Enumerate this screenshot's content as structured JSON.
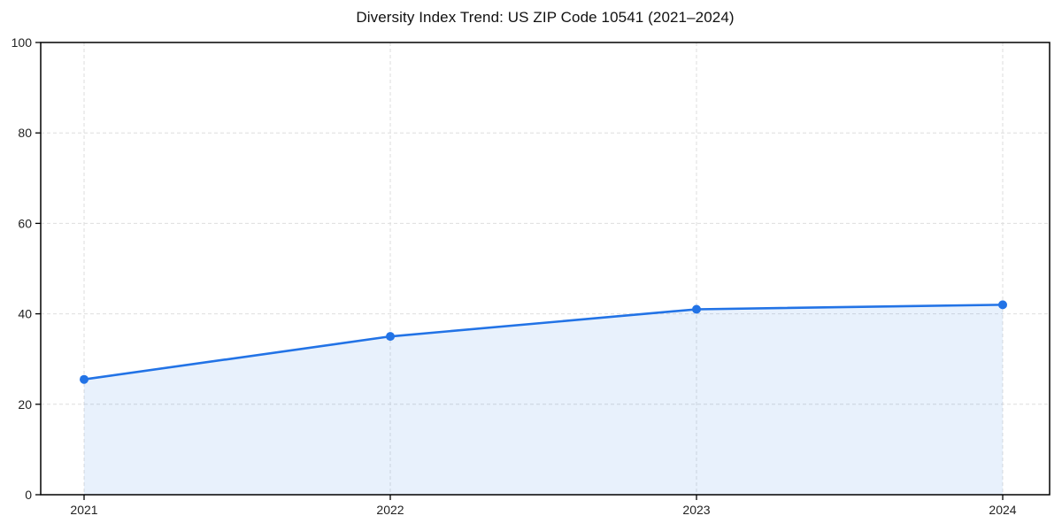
{
  "chart_data": {
    "type": "area",
    "title": "Diversity Index Trend: US ZIP Code 10541 (2021–2024)",
    "categories": [
      "2021",
      "2022",
      "2023",
      "2024"
    ],
    "values": [
      25.5,
      35,
      41,
      42
    ],
    "xlabel": "",
    "ylabel": "",
    "ylim": [
      0,
      100
    ],
    "yticks": [
      0,
      20,
      40,
      60,
      80,
      100
    ],
    "grid": true,
    "grid_style": "dashed",
    "legend_position": "none",
    "line_color": "#2273e6",
    "marker_color": "#2273e6",
    "fill_color": "#2273e6",
    "fill_opacity": 0.1,
    "grid_color": "#dedede",
    "axis_color": "#000000",
    "text_color": "#222222",
    "background_color": "#ffffff"
  }
}
